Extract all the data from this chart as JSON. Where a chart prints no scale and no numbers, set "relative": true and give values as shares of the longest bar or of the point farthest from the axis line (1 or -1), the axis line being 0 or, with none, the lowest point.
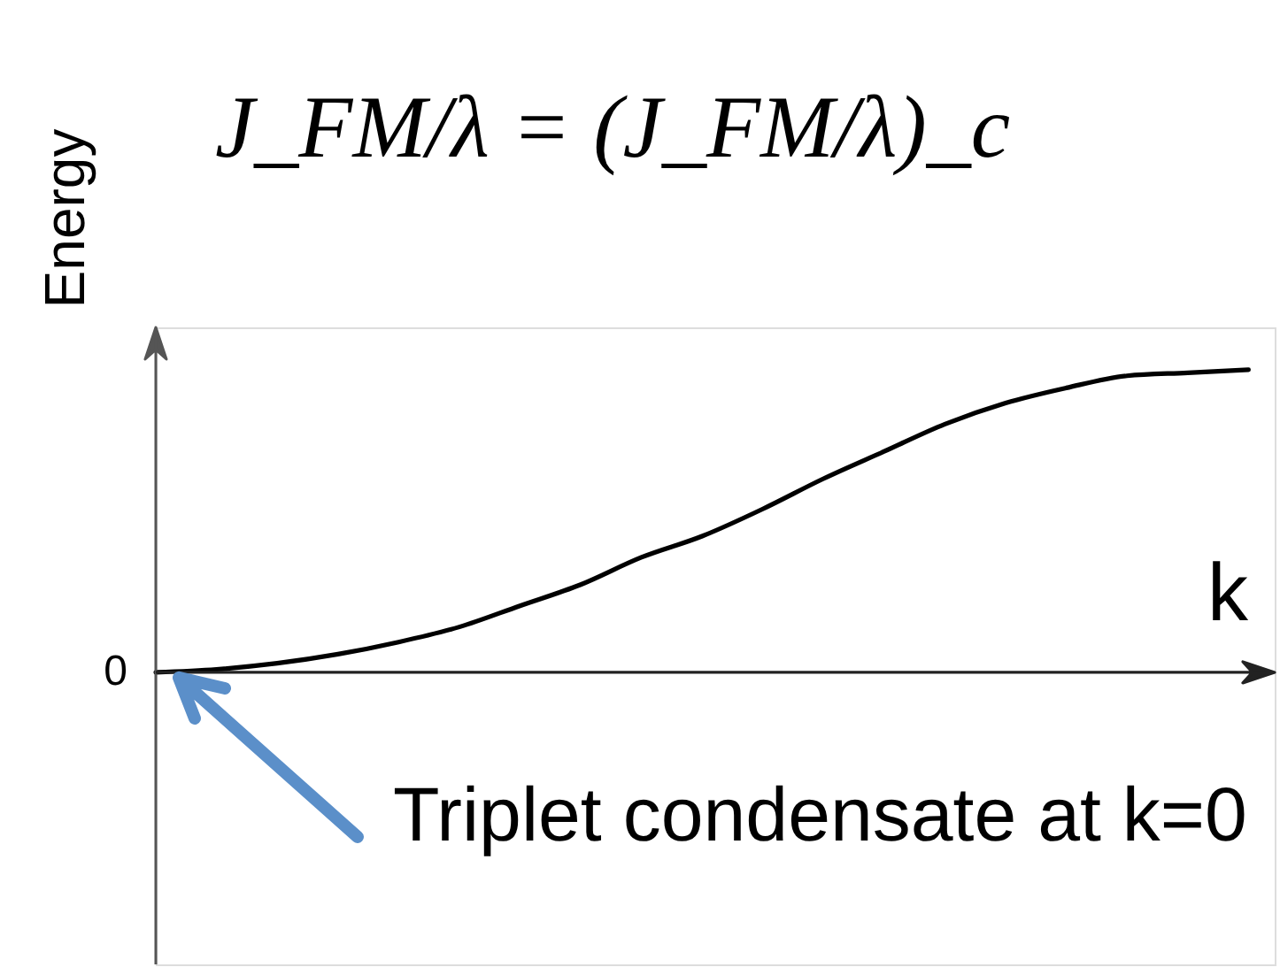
{
  "chart_data": {
    "type": "line",
    "title": "J_FM/λ = (J_FM/λ)_c",
    "xlabel": "k",
    "ylabel": "Energy",
    "categories": [
      null,
      null,
      null,
      null,
      null,
      null,
      null,
      null,
      null,
      null,
      null,
      null,
      null,
      null,
      null,
      null,
      null,
      null,
      null
    ],
    "series": [
      {
        "color": "#000000",
        "values": [
          0,
          0.01,
          0.03,
          0.06,
          0.1,
          0.15,
          0.22,
          0.29,
          0.38,
          0.45,
          0.54,
          0.64,
          0.73,
          0.82,
          0.89,
          0.94,
          0.98,
          0.99,
          1
        ]
      }
    ],
    "relative": true,
    "ref_lines": [
      {
        "axis": "y",
        "value": 0,
        "label": "0",
        "color": "#222222"
      }
    ],
    "annotations": [
      "Triplet condensate at k=0"
    ]
  }
}
